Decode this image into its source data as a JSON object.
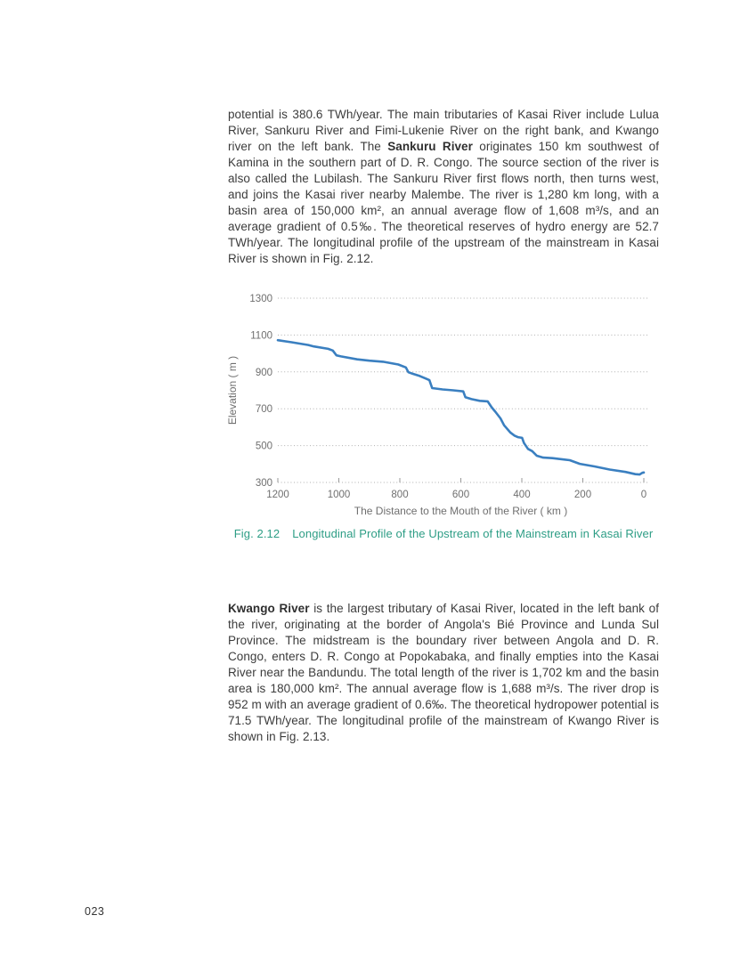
{
  "page": {
    "number": "023"
  },
  "paragraph1": {
    "pre": "potential is 380.6 TWh/year. The main tributaries of Kasai River include Lulua River, Sankuru River and Fimi-Lukenie River on the right bank, and Kwango river on the left bank. The ",
    "bold": "Sankuru River",
    "post": " originates 150 km southwest of Kamina in the southern part of D. R. Congo. The source section of the river is also called the Lubilash. The Sankuru River first flows north, then turns west, and joins the Kasai river nearby Malembe. The river is 1,280 km long, with a basin area of 150,000 km², an annual average flow of 1,608 m³/s, and an average gradient of 0.5‰. The theoretical reserves of hydro energy are 52.7 TWh/year. The longitudinal profile of the upstream of the mainstream in Kasai River is shown in Fig. 2.12."
  },
  "figure": {
    "caption_label": "Fig. 2.12",
    "caption_text": "Longitudinal Profile of the Upstream of the Mainstream in Kasai River"
  },
  "paragraph2": {
    "bold": "Kwango River",
    "post": " is the largest tributary of Kasai River, located in the left bank of the river, originating at the border of Angola's Bié Province and Lunda Sul Province. The midstream is the boundary river between Angola and D. R. Congo, enters D. R. Congo at Popokabaka, and finally empties into the Kasai River near the Bandundu. The total length of the river is 1,702 km and the basin area is 180,000 km². The annual average flow is 1,688 m³/s. The river drop is 952 m with an average gradient of 0.6‰. The theoretical hydropower potential is 71.5 TWh/year. The longitudinal profile of the mainstream of Kwango River is shown in Fig. 2.13."
  },
  "chart_data": {
    "type": "line",
    "title": "",
    "xlabel": "The Distance to the Mouth of the River ( km )",
    "ylabel": "Elevation ( m )",
    "xlim": [
      1200,
      0
    ],
    "ylim": [
      300,
      1300
    ],
    "x_ticks": [
      1200,
      1000,
      800,
      600,
      400,
      200,
      0
    ],
    "y_ticks": [
      300,
      500,
      700,
      900,
      1100,
      1300
    ],
    "x_axis_reversed": true,
    "grid": "horizontal-dotted",
    "legend": "none",
    "series": [
      {
        "name": "Kasai River upstream longitudinal profile",
        "points": [
          [
            1200,
            1072
          ],
          [
            1155,
            1061
          ],
          [
            1100,
            1046
          ],
          [
            1082,
            1038
          ],
          [
            1035,
            1025
          ],
          [
            1020,
            1016
          ],
          [
            1008,
            990
          ],
          [
            993,
            984
          ],
          [
            940,
            968
          ],
          [
            900,
            961
          ],
          [
            855,
            955
          ],
          [
            805,
            940
          ],
          [
            780,
            924
          ],
          [
            772,
            898
          ],
          [
            758,
            890
          ],
          [
            735,
            878
          ],
          [
            712,
            862
          ],
          [
            703,
            855
          ],
          [
            694,
            812
          ],
          [
            660,
            805
          ],
          [
            625,
            800
          ],
          [
            592,
            794
          ],
          [
            585,
            763
          ],
          [
            565,
            752
          ],
          [
            538,
            743
          ],
          [
            512,
            740
          ],
          [
            498,
            706
          ],
          [
            487,
            684
          ],
          [
            470,
            648
          ],
          [
            458,
            610
          ],
          [
            437,
            570
          ],
          [
            424,
            554
          ],
          [
            413,
            546
          ],
          [
            399,
            542
          ],
          [
            393,
            514
          ],
          [
            380,
            482
          ],
          [
            366,
            470
          ],
          [
            351,
            445
          ],
          [
            330,
            435
          ],
          [
            300,
            432
          ],
          [
            243,
            421
          ],
          [
            210,
            401
          ],
          [
            162,
            387
          ],
          [
            112,
            370
          ],
          [
            60,
            357
          ],
          [
            28,
            345
          ],
          [
            14,
            343
          ],
          [
            5,
            352
          ],
          [
            0,
            354
          ]
        ]
      }
    ]
  },
  "colors": {
    "body_text": "#3c3c3c",
    "caption": "#2d9d85",
    "axis_text": "#6f6f6f",
    "gridline": "#b0b0b0",
    "tick_mark": "#999999",
    "line": "#3a7fc0"
  }
}
